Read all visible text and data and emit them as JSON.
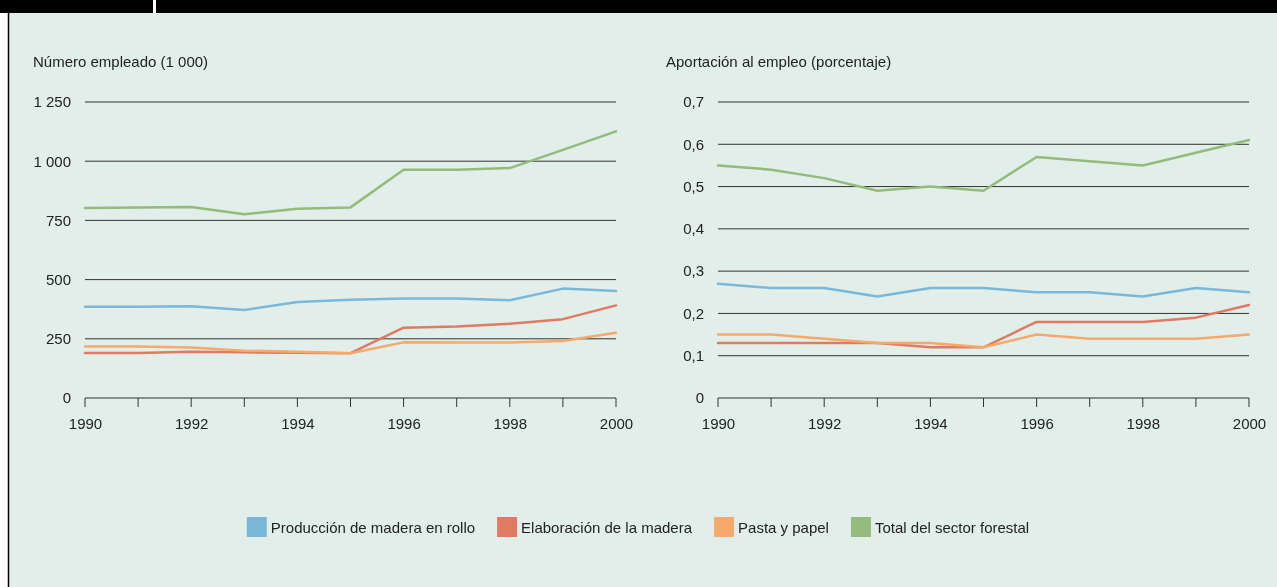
{
  "chart_data": [
    {
      "type": "line",
      "ylabel": "Número empleado (1 000)",
      "x": [
        1990,
        1991,
        1992,
        1993,
        1994,
        1995,
        1996,
        1997,
        1998,
        1999,
        2000
      ],
      "xlim": [
        1990,
        2000
      ],
      "xticks": [
        1990,
        {
          "value": 1991,
          "label": null
        },
        1992,
        {
          "value": 1993,
          "label": null
        },
        1994,
        {
          "value": 1995,
          "label": null
        },
        1996,
        {
          "value": 1997,
          "label": null
        },
        1998,
        {
          "value": 1999,
          "label": null
        },
        2000
      ],
      "ylim": [
        0,
        1250
      ],
      "yticks": [
        0,
        250,
        500,
        750,
        {
          "value": 1000,
          "label": "1 000"
        },
        {
          "value": 1250,
          "label": "1 250"
        }
      ],
      "grid": "y",
      "legend": "bottom",
      "series": [
        {
          "name": "Producción de madera en rollo",
          "color": "#7ab8d9",
          "values": [
            385,
            385,
            387,
            372,
            405,
            415,
            420,
            420,
            413,
            462,
            452
          ]
        },
        {
          "name": "Elaboración de la madera",
          "color": "#e07b63",
          "values": [
            190,
            190,
            195,
            193,
            191,
            189,
            297,
            302,
            314,
            333,
            391
          ]
        },
        {
          "name": "Pasta y papel",
          "color": "#f5a96b",
          "values": [
            218,
            218,
            213,
            200,
            195,
            189,
            235,
            234,
            234,
            241,
            276
          ]
        },
        {
          "name": "Total del sector forestal",
          "color": "#94ba7c",
          "values": [
            802,
            805,
            807,
            776,
            799,
            805,
            964,
            964,
            971,
            1048,
            1126
          ]
        }
      ]
    },
    {
      "type": "line",
      "ylabel": "Aportación al empleo (porcentaje)",
      "x": [
        1990,
        1991,
        1992,
        1993,
        1994,
        1995,
        1996,
        1997,
        1998,
        1999,
        2000
      ],
      "xlim": [
        1990,
        2000
      ],
      "xticks": [
        1990,
        {
          "value": 1991,
          "label": null
        },
        1992,
        {
          "value": 1993,
          "label": null
        },
        1994,
        {
          "value": 1995,
          "label": null
        },
        1996,
        {
          "value": 1997,
          "label": null
        },
        1998,
        {
          "value": 1999,
          "label": null
        },
        2000
      ],
      "ylim": [
        0,
        0.7
      ],
      "yticks": [
        0,
        {
          "value": 0.1,
          "label": "0,1"
        },
        {
          "value": 0.2,
          "label": "0,2"
        },
        {
          "value": 0.3,
          "label": "0,3"
        },
        {
          "value": 0.4,
          "label": "0,4"
        },
        {
          "value": 0.5,
          "label": "0,5"
        },
        {
          "value": 0.6,
          "label": "0,6"
        },
        {
          "value": 0.7,
          "label": "0,7"
        }
      ],
      "grid": "y",
      "series": [
        {
          "color": "#7ab8d9",
          "values": [
            0.27,
            0.26,
            0.26,
            0.24,
            0.26,
            0.26,
            0.25,
            0.25,
            0.24,
            0.26,
            0.25
          ]
        },
        {
          "color": "#e07b63",
          "values": [
            0.13,
            0.13,
            0.13,
            0.13,
            0.12,
            0.12,
            0.18,
            0.18,
            0.18,
            0.19,
            0.22
          ]
        },
        {
          "color": "#f5a96b",
          "values": [
            0.15,
            0.15,
            0.14,
            0.13,
            0.13,
            0.12,
            0.15,
            0.14,
            0.14,
            0.14,
            0.15
          ]
        },
        {
          "color": "#94ba7c",
          "values": [
            0.55,
            0.54,
            0.52,
            0.49,
            0.5,
            0.49,
            0.57,
            0.56,
            0.55,
            0.58,
            0.61
          ]
        }
      ]
    }
  ]
}
